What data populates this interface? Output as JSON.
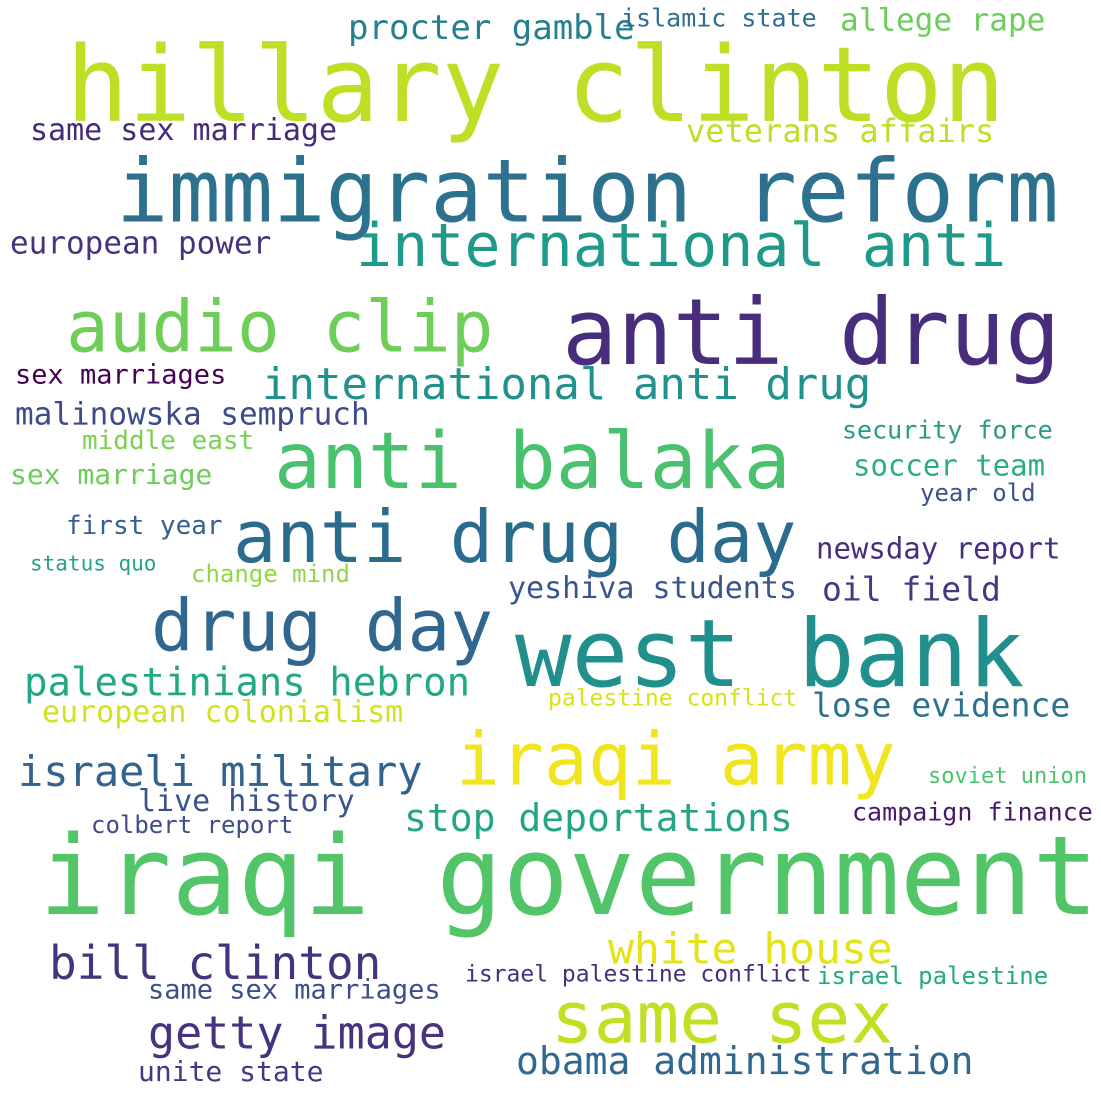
{
  "words": [
    {
      "text": "hillary clinton",
      "color": "#bddf26"
    },
    {
      "text": "procter gamble",
      "color": "#277f8e"
    },
    {
      "text": "islamic state",
      "color": "#2e6e8e"
    },
    {
      "text": "allege rape",
      "color": "#6ccd5a"
    },
    {
      "text": "same sex marriage",
      "color": "#482878"
    },
    {
      "text": "veterans affairs",
      "color": "#bddf26"
    },
    {
      "text": "immigration reform",
      "color": "#2c728e"
    },
    {
      "text": "international anti",
      "color": "#1f9a8a"
    },
    {
      "text": "european power",
      "color": "#46327e"
    },
    {
      "text": "audio clip",
      "color": "#6ece58"
    },
    {
      "text": "anti drug",
      "color": "#472d7b"
    },
    {
      "text": "sex marriages",
      "color": "#440154"
    },
    {
      "text": "international anti drug",
      "color": "#20928c"
    },
    {
      "text": "malinowska sempruch",
      "color": "#3e4a89"
    },
    {
      "text": "middle east",
      "color": "#7ad151"
    },
    {
      "text": "anti balaka",
      "color": "#4ac16d"
    },
    {
      "text": "security force",
      "color": "#2a9a85"
    },
    {
      "text": "sex marriage",
      "color": "#6ccd5a"
    },
    {
      "text": "soccer team",
      "color": "#29af7f"
    },
    {
      "text": "year old",
      "color": "#3b528b"
    },
    {
      "text": "first year",
      "color": "#355f8d"
    },
    {
      "text": "anti drug day",
      "color": "#2b6c8e"
    },
    {
      "text": "newsday report",
      "color": "#472e7c"
    },
    {
      "text": "status quo",
      "color": "#25a18e"
    },
    {
      "text": "change mind",
      "color": "#8fd744"
    },
    {
      "text": "yeshiva students",
      "color": "#3a548c"
    },
    {
      "text": "oil field",
      "color": "#453781"
    },
    {
      "text": "drug day",
      "color": "#31668e"
    },
    {
      "text": "west bank",
      "color": "#21908d"
    },
    {
      "text": "palestinians hebron",
      "color": "#22a884"
    },
    {
      "text": "palestine conflict",
      "color": "#d8e219"
    },
    {
      "text": "lose evidence",
      "color": "#2d718e"
    },
    {
      "text": "european colonialism",
      "color": "#d2e21b"
    },
    {
      "text": "iraqi army",
      "color": "#f1e51d"
    },
    {
      "text": "israeli military",
      "color": "#33638d"
    },
    {
      "text": "soviet union",
      "color": "#4cc26c"
    },
    {
      "text": "live history",
      "color": "#3b528b"
    },
    {
      "text": "stop deportations",
      "color": "#25a585"
    },
    {
      "text": "campaign finance",
      "color": "#48186a"
    },
    {
      "text": "colbert report",
      "color": "#3e4c8a"
    },
    {
      "text": "iraqi government",
      "color": "#52c569"
    },
    {
      "text": "white house",
      "color": "#e2e418"
    },
    {
      "text": "bill clinton",
      "color": "#46337e"
    },
    {
      "text": "israel palestine conflict",
      "color": "#462f7c"
    },
    {
      "text": "israel palestine",
      "color": "#23a983"
    },
    {
      "text": "same sex marriages",
      "color": "#3d4d8a"
    },
    {
      "text": "same sex",
      "color": "#c2df23"
    },
    {
      "text": "getty image",
      "color": "#46327e"
    },
    {
      "text": "obama administration",
      "color": "#31688e"
    },
    {
      "text": "unite state",
      "color": "#453882"
    }
  ]
}
